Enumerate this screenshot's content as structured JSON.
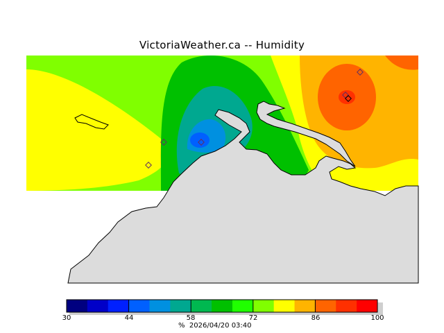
{
  "title": "VictoriaWeather.ca -- Humidity",
  "map": {
    "layer": "humidity contours",
    "station_markers": [
      {
        "value_band": "72-86"
      },
      {
        "value_band": "72-86"
      },
      {
        "value_band": "44-58"
      },
      {
        "value_band": "86-100"
      },
      {
        "value_band": "86-100"
      },
      {
        "value_band": "86-100"
      }
    ]
  },
  "colorbar": {
    "unit": "%",
    "timestamp": "2026/04/20 03:40",
    "ticks": [
      "30",
      "44",
      "58",
      "72",
      "86",
      "100"
    ],
    "colors": [
      "#000080",
      "#0000c8",
      "#0020ff",
      "#0060ff",
      "#0090e0",
      "#00a890",
      "#00b850",
      "#00c000",
      "#20ff00",
      "#80ff00",
      "#ffff00",
      "#ffb400",
      "#ff6400",
      "#ff3000",
      "#ff0000"
    ]
  }
}
